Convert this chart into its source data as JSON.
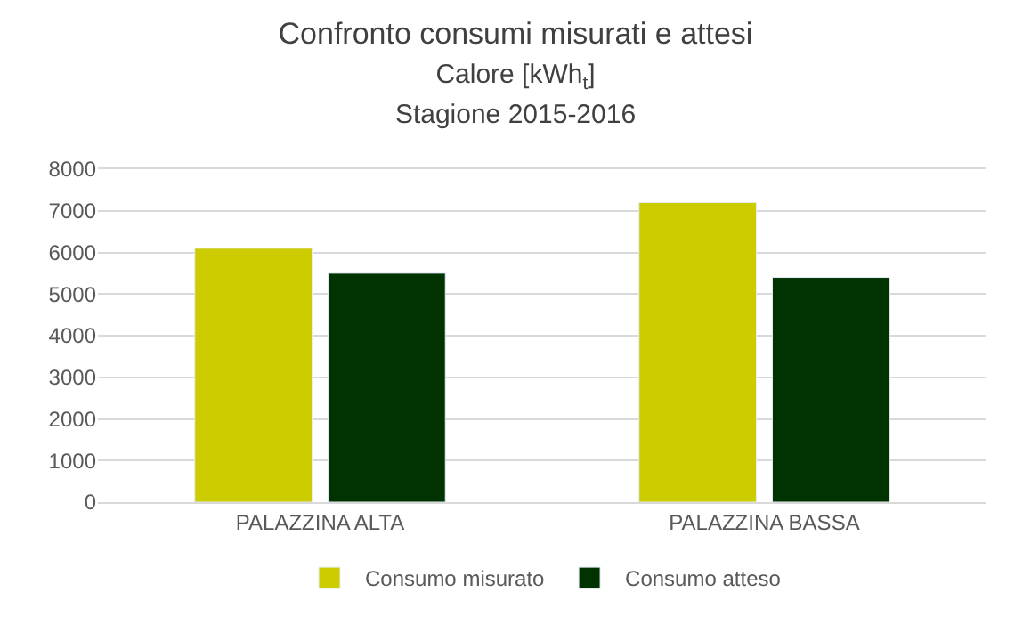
{
  "chart_data": {
    "type": "bar",
    "title": "Confronto consumi misurati e attesi",
    "subtitle": "Calore [kWh$_{t}$]\nStagione 2015-2016",
    "categories": [
      "PALAZZINA ALTA",
      "PALAZZINA BASSA"
    ],
    "series": [
      {
        "name": "Consumo misurato",
        "color": "#cccc00",
        "values": [
          6100,
          7200
        ]
      },
      {
        "name": "Consumo atteso",
        "color": "#003300",
        "values": [
          5500,
          5400
        ]
      }
    ],
    "ylim": [
      0,
      8000
    ],
    "yticks": [
      0,
      1000,
      2000,
      3000,
      4000,
      5000,
      6000,
      7000,
      8000
    ],
    "grid": "y",
    "legend": "bottom"
  }
}
